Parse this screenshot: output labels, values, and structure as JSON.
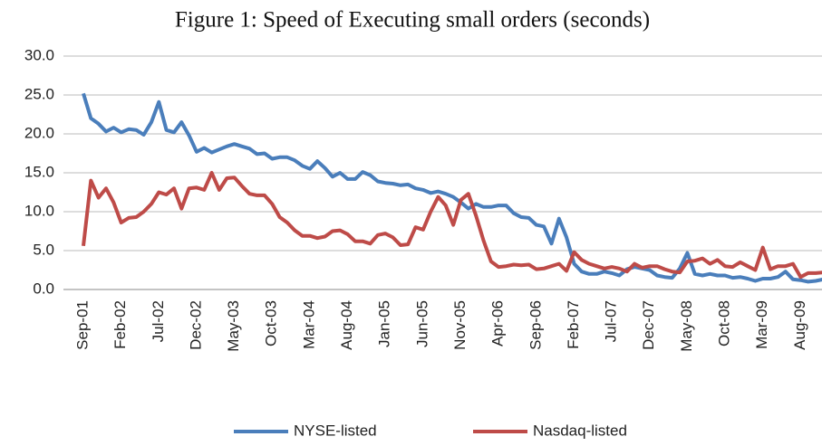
{
  "chart_data": {
    "type": "line",
    "title": "Figure 1: Speed of Executing small orders (seconds)",
    "categories": [
      "Sep-01",
      null,
      null,
      null,
      null,
      "Feb-02",
      null,
      null,
      null,
      null,
      "Jul-02",
      null,
      null,
      null,
      null,
      "Dec-02",
      null,
      null,
      null,
      null,
      "May-03",
      null,
      null,
      null,
      null,
      "Oct-03",
      null,
      null,
      null,
      null,
      "Mar-04",
      null,
      null,
      null,
      null,
      "Aug-04",
      null,
      null,
      null,
      null,
      "Jan-05",
      null,
      null,
      null,
      null,
      "Jun-05",
      null,
      null,
      null,
      null,
      "Nov-05",
      null,
      null,
      null,
      null,
      "Apr-06",
      null,
      null,
      null,
      null,
      "Sep-06",
      null,
      null,
      null,
      null,
      "Feb-07",
      null,
      null,
      null,
      null,
      "Jul-07",
      null,
      null,
      null,
      null,
      "Dec-07",
      null,
      null,
      null,
      null,
      "May-08",
      null,
      null,
      null,
      null,
      "Oct-08",
      null,
      null,
      null,
      null,
      "Mar-09",
      null,
      null,
      null,
      null,
      "Aug-09",
      null,
      null,
      null
    ],
    "series": [
      {
        "name": "NYSE-listed",
        "color": "#4a7ebb",
        "values": [
          25.2,
          22,
          21.3,
          20.3,
          20.8,
          20.2,
          20.6,
          20.5,
          19.9,
          21.5,
          24.1,
          20.5,
          20.2,
          21.5,
          19.8,
          17.7,
          18.2,
          17.6,
          18,
          18.4,
          18.7,
          18.4,
          18.1,
          17.4,
          17.5,
          16.8,
          17,
          17,
          16.6,
          15.9,
          15.5,
          16.5,
          15.6,
          14.5,
          15,
          14.2,
          14.2,
          15.1,
          14.7,
          13.9,
          13.7,
          13.6,
          13.4,
          13.5,
          13,
          12.8,
          12.4,
          12.6,
          12.3,
          11.9,
          11.2,
          10.4,
          11,
          10.6,
          10.6,
          10.8,
          10.8,
          9.8,
          9.3,
          9.2,
          8.3,
          8.1,
          5.9,
          9.1,
          6.7,
          3.3,
          2.3,
          2,
          2,
          2.3,
          2.1,
          1.8,
          2.6,
          2.9,
          2.7,
          2.5,
          1.8,
          1.6,
          1.5,
          2.7,
          4.7,
          2,
          1.8,
          2,
          1.8,
          1.8,
          1.5,
          1.6,
          1.4,
          1.1,
          1.4,
          1.4,
          1.6,
          2.3,
          1.3,
          1.2,
          1,
          1.1,
          1.3
        ]
      },
      {
        "name": "Nasdaq-listed",
        "color": "#be4b48",
        "values": [
          5.6,
          14,
          11.8,
          13,
          11.2,
          8.6,
          9.2,
          9.3,
          10,
          11,
          12.5,
          12.2,
          13,
          10.4,
          13,
          13.1,
          12.8,
          15,
          12.8,
          14.3,
          14.4,
          13.3,
          12.3,
          12.1,
          12.1,
          11,
          9.3,
          8.6,
          7.6,
          6.9,
          6.9,
          6.6,
          6.8,
          7.5,
          7.6,
          7.1,
          6.2,
          6.2,
          5.9,
          7,
          7.2,
          6.7,
          5.7,
          5.8,
          8,
          7.7,
          10,
          11.9,
          10.8,
          8.3,
          11.5,
          12.3,
          9.5,
          6.3,
          3.6,
          2.9,
          3,
          3.2,
          3.1,
          3.2,
          2.6,
          2.7,
          3,
          3.3,
          2.4,
          4.8,
          3.8,
          3.3,
          3,
          2.7,
          2.9,
          2.7,
          2.3,
          3.3,
          2.8,
          3,
          3,
          2.6,
          2.3,
          2.2,
          3.6,
          3.7,
          4,
          3.3,
          3.8,
          3,
          2.9,
          3.5,
          3,
          2.5,
          5.4,
          2.6,
          3,
          3,
          3.3,
          1.6,
          2.1,
          2.1,
          2.2
        ]
      }
    ],
    "ylim": [
      0,
      30
    ],
    "yticks": [
      {
        "value": 0,
        "label": "0.0"
      },
      {
        "value": 5,
        "label": "5.0"
      },
      {
        "value": 10,
        "label": "10.0"
      },
      {
        "value": 15,
        "label": "15.0"
      },
      {
        "value": 20,
        "label": "20.0"
      },
      {
        "value": 25,
        "label": "25.0"
      },
      {
        "value": 30,
        "label": "30.0"
      }
    ],
    "grid": true,
    "legend": "bottom"
  }
}
